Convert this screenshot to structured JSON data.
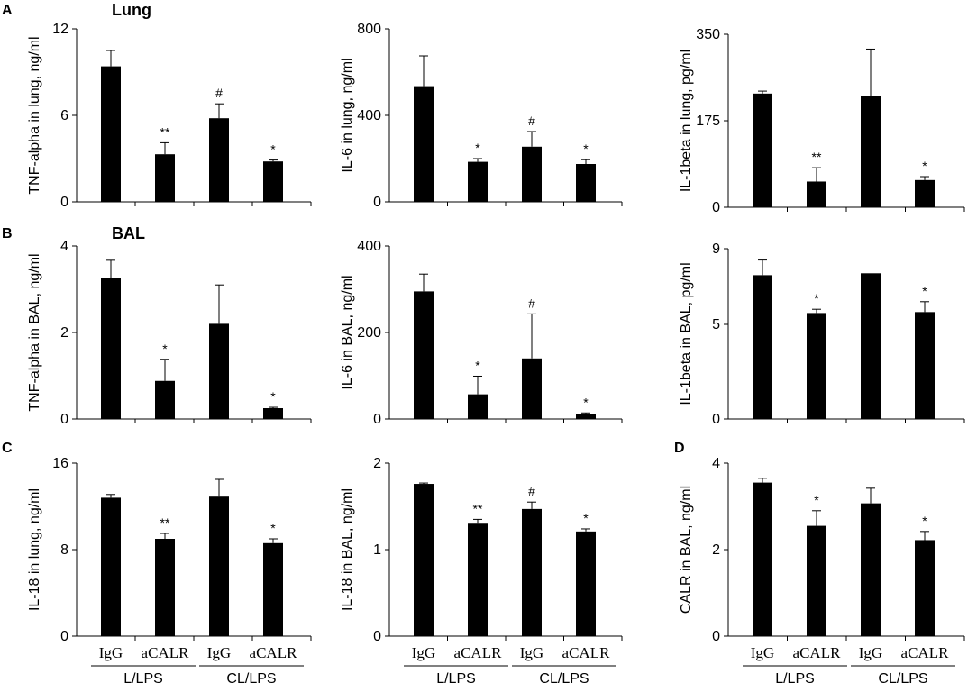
{
  "panel_letters": {
    "a": "A",
    "b": "B",
    "c": "C",
    "d": "D"
  },
  "row_titles": {
    "lung": "Lung",
    "bal": "BAL"
  },
  "category_labels": [
    "IgG",
    "aCALR",
    "IgG",
    "aCALR"
  ],
  "group_labels": [
    "L/LPS",
    "CL/LPS"
  ],
  "chart_data": [
    {
      "id": "tnf_lung",
      "type": "bar",
      "ylabel": "TNF-alpha in lung, ng/ml",
      "ylim": [
        0,
        12
      ],
      "yticks": [
        "0",
        "6",
        "12"
      ],
      "values": [
        9.4,
        3.3,
        5.8,
        2.8
      ],
      "errors": [
        1.1,
        0.8,
        1.0,
        0.1
      ],
      "sig": [
        "",
        "**",
        "#",
        "*"
      ]
    },
    {
      "id": "il6_lung",
      "type": "bar",
      "ylabel": "IL-6 in lung,  ng/ml",
      "ylim": [
        0,
        800
      ],
      "yticks": [
        "0",
        "400",
        "800"
      ],
      "values": [
        535,
        185,
        255,
        175
      ],
      "errors": [
        140,
        15,
        70,
        20
      ],
      "sig": [
        "",
        "*",
        "#",
        "*"
      ]
    },
    {
      "id": "il1b_lung",
      "type": "bar",
      "ylabel": "IL-1beta in lung,  pg/ml",
      "ylim": [
        0,
        350
      ],
      "yticks": [
        "0",
        "175",
        "350"
      ],
      "values": [
        230,
        52,
        225,
        55
      ],
      "errors": [
        5,
        28,
        95,
        7
      ],
      "sig": [
        "",
        "**",
        "",
        "*"
      ]
    },
    {
      "id": "tnf_bal",
      "type": "bar",
      "ylabel": "TNF-alpha in BAL, ng/ml",
      "ylim": [
        0,
        4
      ],
      "yticks": [
        "0",
        "2",
        "4"
      ],
      "values": [
        3.25,
        0.88,
        2.2,
        0.25
      ],
      "errors": [
        0.42,
        0.5,
        0.9,
        0.02
      ],
      "sig": [
        "",
        "*",
        "",
        "*"
      ]
    },
    {
      "id": "il6_bal",
      "type": "bar",
      "ylabel": "IL-6 in BAL, ng/ml",
      "ylim": [
        0,
        400
      ],
      "yticks": [
        "0",
        "200",
        "400"
      ],
      "values": [
        295,
        57,
        140,
        12
      ],
      "errors": [
        40,
        42,
        103,
        2
      ],
      "sig": [
        "",
        "*",
        "#",
        "*"
      ]
    },
    {
      "id": "il1b_bal",
      "type": "bar",
      "ylabel": "IL-1beta in BAL,  pg/ml",
      "ylim": [
        0,
        9
      ],
      "yticks": [
        "0",
        "5",
        "9"
      ],
      "values": [
        7.6,
        5.6,
        7.7,
        5.65
      ],
      "errors": [
        0.8,
        0.2,
        0.0,
        0.55
      ],
      "sig": [
        "",
        "*",
        "",
        "*"
      ]
    },
    {
      "id": "il18_lung",
      "type": "bar",
      "ylabel": "IL-18 in lung,  ng/ml",
      "ylim": [
        0,
        16
      ],
      "yticks": [
        "0",
        "8",
        "16"
      ],
      "values": [
        12.8,
        9.0,
        12.9,
        8.6
      ],
      "errors": [
        0.3,
        0.5,
        1.6,
        0.4
      ],
      "sig": [
        "",
        "**",
        "",
        "*"
      ]
    },
    {
      "id": "il18_bal",
      "type": "bar",
      "ylabel": "IL-18 in BAL, ng/ml",
      "ylim": [
        0,
        2
      ],
      "yticks": [
        "0",
        "1",
        "2"
      ],
      "values": [
        1.76,
        1.31,
        1.47,
        1.21
      ],
      "errors": [
        0.01,
        0.04,
        0.08,
        0.03
      ],
      "sig": [
        "",
        "**",
        "#",
        "*"
      ]
    },
    {
      "id": "calr_bal",
      "type": "bar",
      "ylabel": "CALR in BAL, ng/ml",
      "ylim": [
        0,
        4
      ],
      "yticks": [
        "0",
        "2",
        "4"
      ],
      "values": [
        3.55,
        2.55,
        3.07,
        2.22
      ],
      "errors": [
        0.1,
        0.35,
        0.35,
        0.2
      ],
      "sig": [
        "",
        "*",
        "",
        "*"
      ]
    }
  ]
}
